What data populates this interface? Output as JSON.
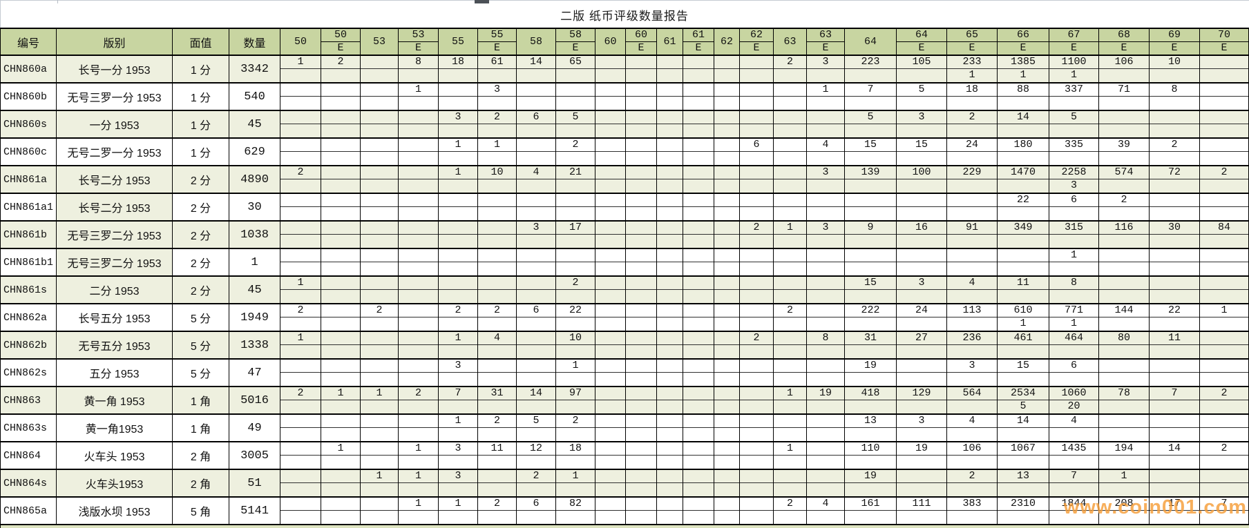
{
  "title": "二版 纸币评级数量报告",
  "watermark": "www.coin001.com",
  "colors": {
    "header_bg": "#c8d5a1",
    "row_green": "#eef0df",
    "row_white": "#ffffff",
    "grid": "#000000",
    "watermark": "#f59e38"
  },
  "header": {
    "fixed": [
      "编号",
      "版别",
      "面值",
      "数量"
    ],
    "epq_suffix": "E"
  },
  "grade_columns": [
    "50",
    "50E",
    "53",
    "53E",
    "55",
    "55E",
    "58",
    "58E",
    "60",
    "60E",
    "61",
    "61E",
    "62",
    "62E",
    "63",
    "63E",
    "64",
    "64E",
    "65E",
    "66E",
    "67E",
    "68E",
    "69E",
    "70E"
  ],
  "rows": [
    {
      "id": "CHN860a",
      "ver": "长号一分 1953",
      "fv": "1 分",
      "qty": "3342",
      "bg": "green",
      "main": {
        "50": "1",
        "50E": "2",
        "53E": "8",
        "55": "18",
        "55E": "61",
        "58": "14",
        "58E": "65",
        "63": "2",
        "63E": "3",
        "64": "223",
        "64E": "105",
        "65E": "233",
        "66E": "1385",
        "67E": "1100",
        "68E": "106",
        "69E": "10"
      },
      "sub": {
        "65E": "1",
        "66E": "1",
        "67E": "1"
      }
    },
    {
      "id": "CHN860b",
      "ver": "无号三罗一分 1953",
      "fv": "1 分",
      "qty": "540",
      "bg": "white",
      "main": {
        "53E": "1",
        "55E": "3",
        "63E": "1",
        "64": "7",
        "64E": "5",
        "65E": "18",
        "66E": "88",
        "67E": "337",
        "68E": "71",
        "69E": "8"
      },
      "sub": {}
    },
    {
      "id": "CHN860s",
      "ver": "一分 1953",
      "fv": "1 分",
      "qty": "45",
      "bg": "green",
      "main": {
        "55": "3",
        "55E": "2",
        "58": "6",
        "58E": "5",
        "64": "5",
        "64E": "3",
        "65E": "2",
        "66E": "14",
        "67E": "5"
      },
      "sub": {}
    },
    {
      "id": "CHN860c",
      "ver": "无号二罗一分 1953",
      "fv": "1 分",
      "qty": "629",
      "bg": "white",
      "main": {
        "55": "1",
        "55E": "1",
        "58E": "2",
        "62E": "6",
        "63E": "4",
        "64": "15",
        "64E": "15",
        "65E": "24",
        "66E": "180",
        "67E": "335",
        "68E": "39",
        "69E": "2"
      },
      "sub": {}
    },
    {
      "id": "CHN861a",
      "ver": "长号二分 1953",
      "fv": "2 分",
      "qty": "4890",
      "bg": "green",
      "main": {
        "50": "2",
        "55": "1",
        "55E": "10",
        "58": "4",
        "58E": "21",
        "63E": "3",
        "64": "139",
        "64E": "100",
        "65E": "229",
        "66E": "1470",
        "67E": "2258",
        "68E": "574",
        "69E": "72",
        "70E": "2"
      },
      "sub": {
        "67E": "3"
      }
    },
    {
      "id": "CHN861a1",
      "ver": "长号二分 1953",
      "fv": "2 分",
      "qty": "30",
      "bg": "white",
      "ver_green": true,
      "main": {
        "66E": "22",
        "67E": "6",
        "68E": "2"
      },
      "sub": {}
    },
    {
      "id": "CHN861b",
      "ver": "无号三罗二分 1953",
      "fv": "2 分",
      "qty": "1038",
      "bg": "green",
      "main": {
        "58": "3",
        "58E": "17",
        "62E": "2",
        "63": "1",
        "63E": "3",
        "64": "9",
        "64E": "16",
        "65E": "91",
        "66E": "349",
        "67E": "315",
        "68E": "116",
        "69E": "30",
        "70E": "84"
      },
      "sub": {}
    },
    {
      "id": "CHN861b1",
      "ver": "无号三罗二分 1953",
      "fv": "2 分",
      "qty": "1",
      "bg": "white",
      "ver_green": true,
      "main": {
        "67E": "1"
      },
      "sub": {}
    },
    {
      "id": "CHN861s",
      "ver": "二分 1953",
      "fv": "2 分",
      "qty": "45",
      "bg": "green",
      "main": {
        "50": "1",
        "58E": "2",
        "64": "15",
        "64E": "3",
        "65E": "4",
        "66E": "11",
        "67E": "8"
      },
      "sub": {}
    },
    {
      "id": "CHN862a",
      "ver": "长号五分 1953",
      "fv": "5 分",
      "qty": "1949",
      "bg": "white",
      "main": {
        "50": "2",
        "53": "2",
        "55": "2",
        "55E": "2",
        "58": "6",
        "58E": "22",
        "63": "2",
        "64": "222",
        "64E": "24",
        "65E": "113",
        "66E": "610",
        "67E": "771",
        "68E": "144",
        "69E": "22",
        "70E": "1"
      },
      "sub": {
        "66E": "1",
        "67E": "1"
      }
    },
    {
      "id": "CHN862b",
      "ver": "无号五分 1953",
      "fv": "5 分",
      "qty": "1338",
      "bg": "green",
      "main": {
        "50": "1",
        "55": "1",
        "55E": "4",
        "58E": "10",
        "62E": "2",
        "63E": "8",
        "64": "31",
        "64E": "27",
        "65E": "236",
        "66E": "461",
        "67E": "464",
        "68E": "80",
        "69E": "11"
      },
      "sub": {}
    },
    {
      "id": "CHN862s",
      "ver": "五分 1953",
      "fv": "5 分",
      "qty": "47",
      "bg": "white",
      "main": {
        "55": "3",
        "58E": "1",
        "64": "19",
        "65E": "3",
        "66E": "15",
        "67E": "6"
      },
      "sub": {}
    },
    {
      "id": "CHN863",
      "ver": "黄一角 1953",
      "fv": "1 角",
      "qty": "5016",
      "bg": "green",
      "main": {
        "50": "2",
        "50E": "1",
        "53": "1",
        "53E": "2",
        "55": "7",
        "55E": "31",
        "58": "14",
        "58E": "97",
        "63": "1",
        "63E": "19",
        "64": "418",
        "64E": "129",
        "65E": "564",
        "66E": "2534",
        "67E": "1060",
        "68E": "78",
        "69E": "7",
        "70E": "2"
      },
      "sub": {
        "66E": "5",
        "67E": "20"
      }
    },
    {
      "id": "CHN863s",
      "ver": "黄一角1953",
      "fv": "1 角",
      "qty": "49",
      "bg": "white",
      "main": {
        "55": "1",
        "55E": "2",
        "58": "5",
        "58E": "2",
        "64": "13",
        "64E": "3",
        "65E": "4",
        "66E": "14",
        "67E": "4"
      },
      "sub": {}
    },
    {
      "id": "CHN864",
      "ver": "火车头 1953",
      "fv": "2 角",
      "qty": "3005",
      "bg": "white",
      "main": {
        "50E": "1",
        "53E": "1",
        "55": "3",
        "55E": "11",
        "58": "12",
        "58E": "18",
        "63": "1",
        "64": "110",
        "64E": "19",
        "65E": "106",
        "66E": "1067",
        "67E": "1435",
        "68E": "194",
        "69E": "14",
        "70E": "2"
      },
      "sub": {}
    },
    {
      "id": "CHN864s",
      "ver": "火车头1953",
      "fv": "2 角",
      "qty": "51",
      "bg": "green",
      "main": {
        "53": "1",
        "53E": "1",
        "55": "3",
        "58": "2",
        "58E": "1",
        "64": "19",
        "65E": "2",
        "66E": "13",
        "67E": "7",
        "68E": "1"
      },
      "sub": {}
    },
    {
      "id": "CHN865a",
      "ver": "浅版水坝 1953",
      "fv": "5 角",
      "qty": "5141",
      "bg": "white",
      "main": {
        "53E": "1",
        "55": "1",
        "55E": "2",
        "58": "6",
        "58E": "82",
        "63": "2",
        "63E": "4",
        "64": "161",
        "64E": "111",
        "65E": "383",
        "66E": "2310",
        "67E": "1844",
        "68E": "208",
        "69E": "17",
        "70E": "7"
      },
      "sub": {}
    }
  ]
}
